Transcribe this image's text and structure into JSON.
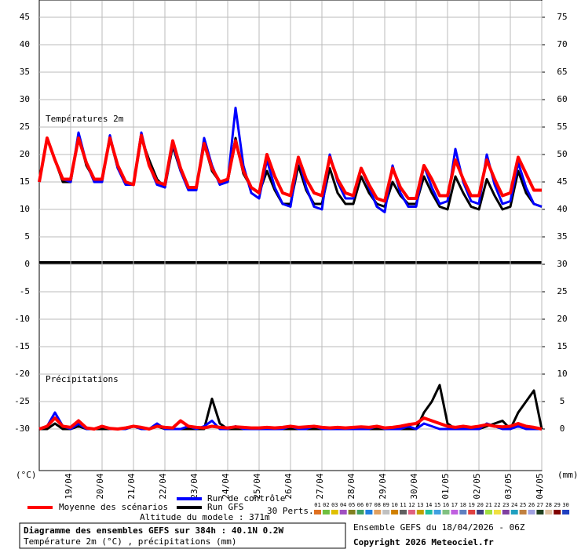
{
  "chart_data": {
    "type": "line",
    "temperature_label": "Températures 2m",
    "precipitation_label": "Précipitations",
    "y_unit": "(°C)",
    "y2_unit": "(mm)",
    "x": [
      0,
      6,
      12,
      18,
      24,
      30,
      36,
      42,
      48,
      54,
      60,
      66,
      72,
      78,
      84,
      90,
      96,
      102,
      108,
      114,
      120,
      126,
      132,
      138,
      144,
      150,
      156,
      162,
      168,
      174,
      180,
      186,
      192,
      198,
      204,
      210,
      216,
      222,
      228,
      234,
      240,
      246,
      252,
      258,
      264,
      270,
      276,
      282,
      288,
      294,
      300,
      306,
      312,
      318,
      324,
      330,
      336,
      342,
      348,
      354,
      360,
      366,
      372,
      378,
      384
    ],
    "xlim": [
      0,
      384
    ],
    "xticks": [
      {
        "value": 24,
        "label": "19/04"
      },
      {
        "value": 48,
        "label": "20/04"
      },
      {
        "value": 72,
        "label": "21/04"
      },
      {
        "value": 96,
        "label": "22/04"
      },
      {
        "value": 120,
        "label": "23/04"
      },
      {
        "value": 144,
        "label": "24/04"
      },
      {
        "value": 168,
        "label": "25/04"
      },
      {
        "value": 192,
        "label": "26/04"
      },
      {
        "value": 216,
        "label": "27/04"
      },
      {
        "value": 240,
        "label": "28/04"
      },
      {
        "value": 264,
        "label": "29/04"
      },
      {
        "value": 288,
        "label": "30/04"
      },
      {
        "value": 312,
        "label": "01/05"
      },
      {
        "value": 336,
        "label": "02/05"
      },
      {
        "value": 360,
        "label": "03/05"
      },
      {
        "value": 384,
        "label": "04/05"
      }
    ],
    "ylim": [
      -37.5,
      48
    ],
    "yticks": [
      45,
      40,
      35,
      30,
      25,
      20,
      15,
      10,
      5,
      0,
      -5,
      -10,
      -15,
      -20,
      -25,
      -30
    ],
    "y2lim": [
      -7.5,
      78
    ],
    "y2ticks": [
      75,
      70,
      65,
      60,
      55,
      50,
      45,
      40,
      35,
      30,
      25,
      20,
      15,
      10,
      5,
      0
    ],
    "grid": true,
    "series": [
      {
        "name": "Moyenne des scénarios",
        "color": "#ff0000",
        "values": [
          15,
          23,
          19,
          15.5,
          15.5,
          23,
          18.5,
          15.5,
          15.5,
          23,
          18,
          15,
          14.5,
          23.5,
          18,
          15,
          14.5,
          22.5,
          17.5,
          14,
          14,
          22,
          17.5,
          15,
          15.5,
          22.5,
          17,
          14,
          13,
          20,
          16,
          13,
          12.5,
          19.5,
          15.5,
          13,
          12.5,
          19.5,
          15.5,
          13,
          12.5,
          17.5,
          14.5,
          12,
          11.5,
          17.5,
          14,
          12,
          12,
          18,
          15.5,
          12.5,
          12.5,
          19,
          15.5,
          12.5,
          12.5,
          19,
          15.5,
          12.5,
          13,
          19.5,
          16.5,
          13.5,
          13.5
        ],
        "precipitation": [
          0,
          0.5,
          2,
          0.5,
          0.3,
          1.5,
          0.2,
          0,
          0.5,
          0.1,
          0,
          0.2,
          0.5,
          0.3,
          0,
          0.5,
          0.3,
          0.2,
          1.5,
          0.5,
          0.3,
          0.2,
          0.5,
          0.3,
          0.2,
          0.4,
          0.3,
          0.2,
          0.2,
          0.3,
          0.2,
          0.3,
          0.5,
          0.3,
          0.4,
          0.5,
          0.3,
          0.2,
          0.3,
          0.2,
          0.3,
          0.4,
          0.3,
          0.5,
          0.2,
          0.3,
          0.5,
          0.8,
          1,
          2,
          1.5,
          1,
          0.5,
          0.3,
          0.5,
          0.3,
          0.5,
          0.8,
          0.5,
          0.4,
          0.5,
          1,
          0.5,
          0.3,
          0
        ]
      },
      {
        "name": "Run de contrôle",
        "color": "#0000ff",
        "values": [
          15,
          23,
          19,
          15.5,
          15,
          24,
          18.5,
          15,
          15,
          23.5,
          17.5,
          14.5,
          14.5,
          24,
          18,
          14.5,
          14,
          22,
          17,
          13.5,
          13.5,
          23,
          18,
          14.5,
          15,
          28.5,
          18,
          13,
          12,
          19,
          14,
          11,
          10.5,
          19.5,
          14,
          10.5,
          10,
          20,
          15,
          12,
          12,
          17.5,
          14,
          10.5,
          9.5,
          18,
          13,
          10.5,
          10.5,
          18,
          14,
          11,
          11.5,
          21,
          15,
          11.5,
          11,
          20,
          14.5,
          11,
          11.5,
          18.5,
          14,
          11,
          10.5
        ],
        "precipitation": [
          0,
          0.5,
          3,
          0.5,
          0,
          1,
          0,
          0,
          0.5,
          0,
          0,
          0,
          0.5,
          0,
          0,
          1,
          0,
          0,
          0,
          0.5,
          0,
          0.5,
          1.5,
          0,
          0,
          0.5,
          0,
          0,
          0,
          0,
          0,
          0,
          0.5,
          0,
          0,
          0.5,
          0,
          0,
          0,
          0,
          0,
          0,
          0,
          0.5,
          0,
          0,
          0,
          0.5,
          0,
          1,
          0.5,
          0,
          0,
          0,
          0,
          0,
          0,
          1,
          0.5,
          0,
          0,
          0.5,
          0,
          0,
          0
        ]
      },
      {
        "name": "Run GFS",
        "color": "#000000",
        "values": [
          15,
          23,
          19,
          15,
          15,
          23.5,
          18,
          15.5,
          15.5,
          23,
          17.5,
          15,
          14.5,
          23,
          19,
          15.5,
          14,
          21.5,
          17,
          14,
          14,
          22,
          17,
          15,
          15,
          23,
          16.5,
          14,
          13,
          17,
          13.5,
          11,
          11,
          18,
          13.5,
          11,
          11,
          17.5,
          13,
          11,
          11,
          16,
          13,
          11,
          10.5,
          15,
          12.5,
          11,
          11,
          16,
          13,
          10.5,
          10,
          16,
          13,
          10.5,
          10,
          15.5,
          12.5,
          10,
          10.5,
          17,
          13,
          11,
          10.5
        ],
        "precipitation": [
          0,
          0,
          1,
          0,
          0,
          0.5,
          0,
          0,
          0,
          0,
          0,
          0,
          0.5,
          0,
          0,
          0.5,
          0,
          0,
          0,
          0,
          0,
          0,
          5.5,
          1,
          0,
          0,
          0,
          0,
          0,
          0,
          0,
          0,
          0,
          0,
          0,
          0,
          0,
          0,
          0,
          0,
          0,
          0,
          0,
          0,
          0,
          0,
          0,
          0,
          0,
          3,
          5,
          8,
          1,
          0,
          0,
          0,
          0,
          0.5,
          1,
          1.5,
          0,
          3,
          5,
          7,
          0
        ]
      }
    ],
    "perturbations_label": "30 Perts.",
    "perturbations": [
      {
        "name": "01",
        "color": "#e07020"
      },
      {
        "name": "02",
        "color": "#70c040"
      },
      {
        "name": "03",
        "color": "#e0c000"
      },
      {
        "name": "04",
        "color": "#a050c0"
      },
      {
        "name": "05",
        "color": "#808020"
      },
      {
        "name": "06",
        "color": "#40a060"
      },
      {
        "name": "07",
        "color": "#2080e0"
      },
      {
        "name": "08",
        "color": "#e0a060"
      },
      {
        "name": "09",
        "color": "#c0c0c0"
      },
      {
        "name": "10",
        "color": "#d08000"
      },
      {
        "name": "11",
        "color": "#606060"
      },
      {
        "name": "12",
        "color": "#e06080"
      },
      {
        "name": "13",
        "color": "#c0a000"
      },
      {
        "name": "14",
        "color": "#20c0a0"
      },
      {
        "name": "15",
        "color": "#40a0e0"
      },
      {
        "name": "16",
        "color": "#80c080"
      },
      {
        "name": "17",
        "color": "#c060e0"
      },
      {
        "name": "18",
        "color": "#6080c0"
      },
      {
        "name": "19",
        "color": "#e04040"
      },
      {
        "name": "20",
        "color": "#404080"
      },
      {
        "name": "21",
        "color": "#a0e040"
      },
      {
        "name": "22",
        "color": "#f0e040"
      },
      {
        "name": "23",
        "color": "#8040a0"
      },
      {
        "name": "24",
        "color": "#20a0c0"
      },
      {
        "name": "25",
        "color": "#c08040"
      },
      {
        "name": "26",
        "color": "#a0a0e0"
      },
      {
        "name": "27",
        "color": "#204020"
      },
      {
        "name": "28",
        "color": "#e0c0a0"
      },
      {
        "name": "29",
        "color": "#800000"
      },
      {
        "name": "30",
        "color": "#2040c0"
      }
    ],
    "altitude_note": "Altitude du modele : 371m",
    "footer_title": "Diagramme des ensembles GEFS sur 384h : 40.1N 0.2W",
    "footer_subtitle": "Température 2m (°C) , précipitations (mm)",
    "run_info": "Ensemble GEFS du 18/04/2026 - 06Z",
    "copyright": "Copyright 2026 Meteociel.fr"
  }
}
